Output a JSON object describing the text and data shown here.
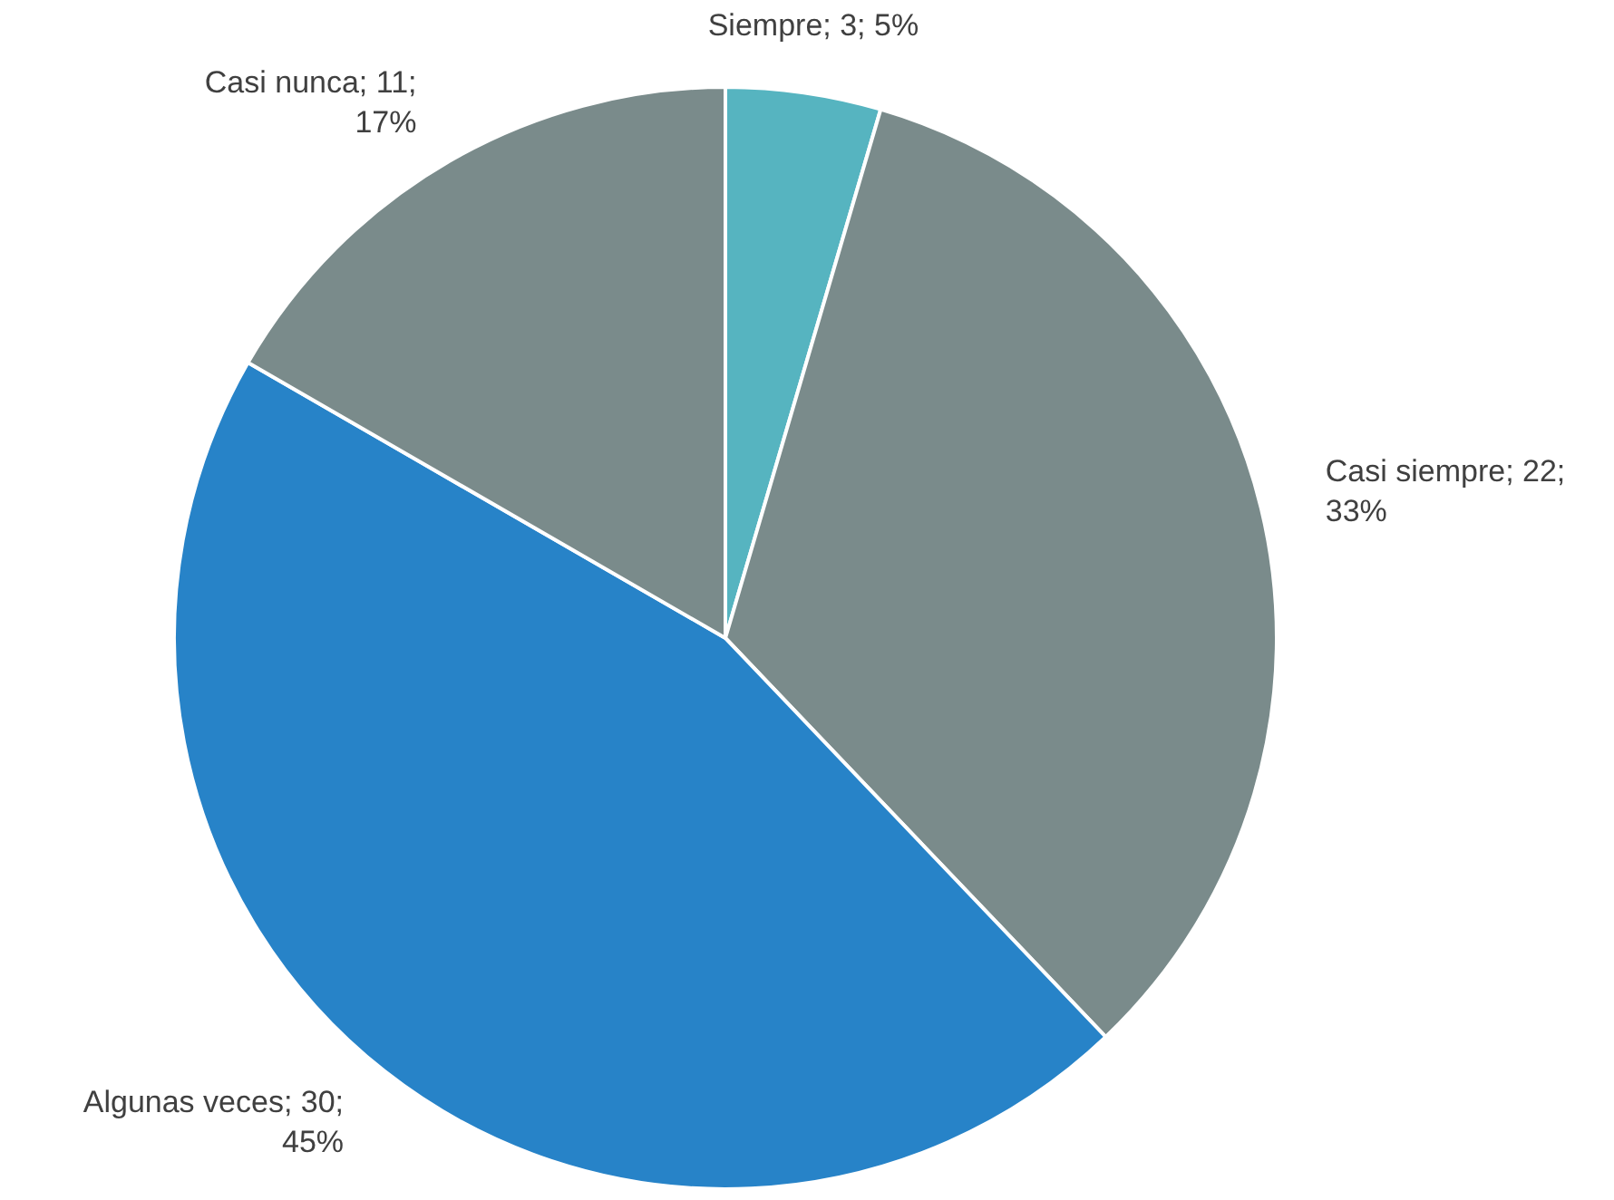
{
  "chart_data": {
    "type": "pie",
    "categories": [
      "Siempre",
      "Casi siempre",
      "Algunas veces",
      "Casi nunca"
    ],
    "values": [
      3,
      22,
      30,
      11
    ],
    "colors": [
      "#56b4c0",
      "#7a8b8b",
      "#2783c8",
      "#7a8b8b"
    ],
    "value_labels": [
      "3; 5%",
      "22; 33%",
      "30; 45%",
      "11; 17%"
    ],
    "legend": false
  }
}
